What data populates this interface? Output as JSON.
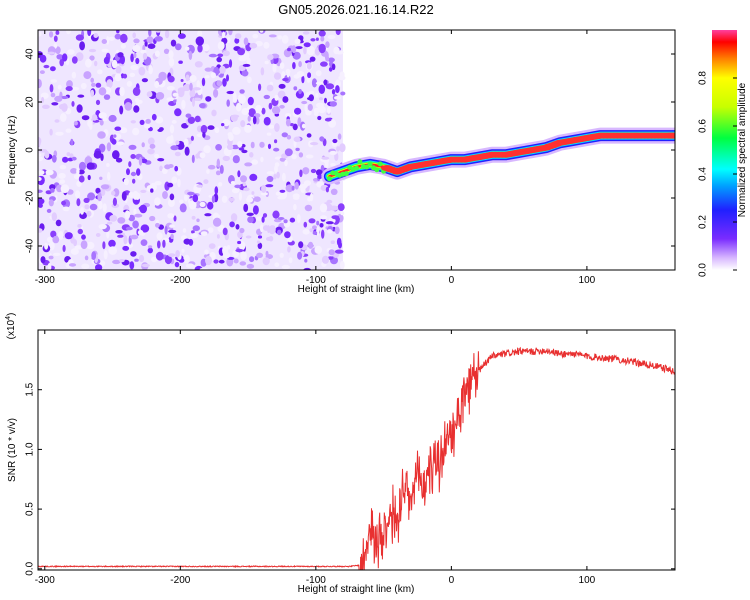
{
  "title": "GN05.2026.021.16.14.R22",
  "chart_data": [
    {
      "type": "heatmap",
      "xlabel": "Height of straight line (km)",
      "ylabel": "Frequency (Hz)",
      "xlim": [
        -305,
        165
      ],
      "ylim": [
        -50,
        50
      ],
      "x_ticks": [
        -300,
        -200,
        -100,
        0,
        100
      ],
      "y_ticks": [
        -40,
        -20,
        0,
        20,
        40
      ],
      "noise_region_x": [
        -305,
        -80
      ],
      "colorbar": {
        "label": "Normalized spectral amplitude",
        "range": [
          0,
          1
        ],
        "ticks": [
          0.0,
          0.2,
          0.4,
          0.6,
          0.8
        ],
        "tick_labels": [
          "0.0",
          "0.2",
          "0.4",
          "0.6",
          "0.8"
        ]
      },
      "ridge": {
        "x": [
          -90,
          -80,
          -70,
          -60,
          -50,
          -40,
          -30,
          -20,
          -10,
          0,
          10,
          20,
          30,
          40,
          50,
          60,
          70,
          80,
          90,
          100,
          110,
          120,
          130,
          140,
          150,
          160,
          165
        ],
        "frequency": [
          -11,
          -9,
          -7,
          -6,
          -7,
          -9,
          -7,
          -6,
          -5,
          -4,
          -4,
          -3,
          -2,
          -2,
          -1,
          0,
          1,
          3,
          4,
          5,
          6,
          6,
          6,
          6,
          6,
          6,
          6
        ]
      }
    },
    {
      "type": "line",
      "xlabel": "Height of straight line (km)",
      "ylabel": "SNR (10 * v/v)",
      "y_multiplier_label": "(x10",
      "y_multiplier_exp": "4",
      "xlim": [
        -305,
        165
      ],
      "ylim": [
        -0.01,
        2.0
      ],
      "x_ticks": [
        -300,
        -200,
        -100,
        0,
        100
      ],
      "y_ticks": [
        0.0,
        0.5,
        1.0,
        1.5
      ],
      "y_tick_labels": [
        "0.0",
        "0.5",
        "1.0",
        "1.5"
      ],
      "series": [
        {
          "color": "#e83030",
          "x": [
            -305,
            -250,
            -200,
            -150,
            -100,
            -75,
            -68,
            -65,
            -62,
            -58,
            -55,
            -50,
            -45,
            -40,
            -35,
            -30,
            -25,
            -20,
            -15,
            -10,
            -5,
            0,
            5,
            10,
            15,
            20,
            25,
            30,
            40,
            50,
            60,
            70,
            80,
            90,
            100,
            110,
            120,
            130,
            140,
            150,
            160,
            165
          ],
          "y": [
            0.02,
            0.02,
            0.02,
            0.02,
            0.02,
            0.02,
            0.03,
            0.15,
            0.2,
            0.35,
            0.25,
            0.35,
            0.45,
            0.4,
            0.65,
            0.55,
            0.75,
            0.7,
            0.9,
            0.85,
            1.0,
            1.1,
            1.3,
            1.45,
            1.55,
            1.65,
            1.72,
            1.78,
            1.8,
            1.82,
            1.82,
            1.83,
            1.8,
            1.8,
            1.78,
            1.77,
            1.76,
            1.74,
            1.72,
            1.7,
            1.67,
            1.65
          ]
        }
      ]
    }
  ]
}
